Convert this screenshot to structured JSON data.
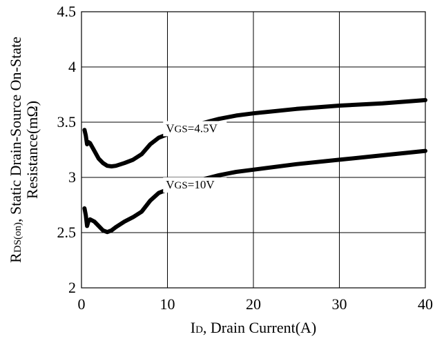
{
  "chart_data": {
    "type": "line",
    "grid": true,
    "xlim": [
      0,
      40
    ],
    "ylim": [
      2,
      4.5
    ],
    "x_ticks": [
      "0",
      "10",
      "20",
      "30",
      "40"
    ],
    "y_ticks": [
      "2",
      "2.5",
      "3",
      "3.5",
      "4",
      "4.5"
    ],
    "x_tick_values": [
      0,
      10,
      20,
      30,
      40
    ],
    "y_tick_values": [
      2,
      2.5,
      3,
      3.5,
      4,
      4.5
    ],
    "xlabel": {
      "main": "I",
      "sub": "D",
      "rest": ", Drain Current(A)"
    },
    "ylabel": {
      "line1_main": "R",
      "line1_sub": "DS(on)",
      "line1_rest": ", Static Drain-Source On-State",
      "line2": "Resistance(mΩ)"
    },
    "series": [
      {
        "name": "VGS=4.5V",
        "label_main": "V",
        "label_sub": "GS",
        "label_rest": "=4.5V",
        "label_at": [
          9.5,
          3.41
        ],
        "points": [
          [
            0.35,
            3.43
          ],
          [
            0.5,
            3.38
          ],
          [
            0.65,
            3.3
          ],
          [
            0.8,
            3.32
          ],
          [
            1.0,
            3.31
          ],
          [
            1.5,
            3.24
          ],
          [
            2.0,
            3.17
          ],
          [
            2.5,
            3.13
          ],
          [
            3.0,
            3.105
          ],
          [
            3.5,
            3.1
          ],
          [
            4.0,
            3.105
          ],
          [
            5.0,
            3.13
          ],
          [
            6.0,
            3.16
          ],
          [
            7.0,
            3.21
          ],
          [
            8.0,
            3.3
          ],
          [
            9.0,
            3.36
          ],
          [
            10.0,
            3.39
          ],
          [
            12.0,
            3.44
          ],
          [
            14.0,
            3.49
          ],
          [
            16.0,
            3.53
          ],
          [
            18.0,
            3.56
          ],
          [
            20.0,
            3.58
          ],
          [
            25.0,
            3.62
          ],
          [
            30.0,
            3.65
          ],
          [
            35.0,
            3.67
          ],
          [
            40.0,
            3.7
          ]
        ]
      },
      {
        "name": "VGS=10V",
        "label_main": "V",
        "label_sub": "GS",
        "label_rest": "=10V",
        "label_at": [
          9.5,
          2.9
        ],
        "points": [
          [
            0.35,
            2.72
          ],
          [
            0.5,
            2.66
          ],
          [
            0.65,
            2.56
          ],
          [
            0.8,
            2.6
          ],
          [
            1.0,
            2.62
          ],
          [
            1.5,
            2.6
          ],
          [
            2.0,
            2.56
          ],
          [
            2.5,
            2.52
          ],
          [
            3.0,
            2.505
          ],
          [
            3.5,
            2.52
          ],
          [
            4.0,
            2.55
          ],
          [
            5.0,
            2.6
          ],
          [
            6.0,
            2.64
          ],
          [
            7.0,
            2.69
          ],
          [
            8.0,
            2.79
          ],
          [
            9.0,
            2.86
          ],
          [
            10.0,
            2.89
          ],
          [
            12.0,
            2.94
          ],
          [
            14.0,
            2.98
          ],
          [
            16.0,
            3.02
          ],
          [
            18.0,
            3.05
          ],
          [
            20.0,
            3.07
          ],
          [
            25.0,
            3.12
          ],
          [
            30.0,
            3.16
          ],
          [
            35.0,
            3.2
          ],
          [
            40.0,
            3.24
          ]
        ]
      }
    ]
  }
}
